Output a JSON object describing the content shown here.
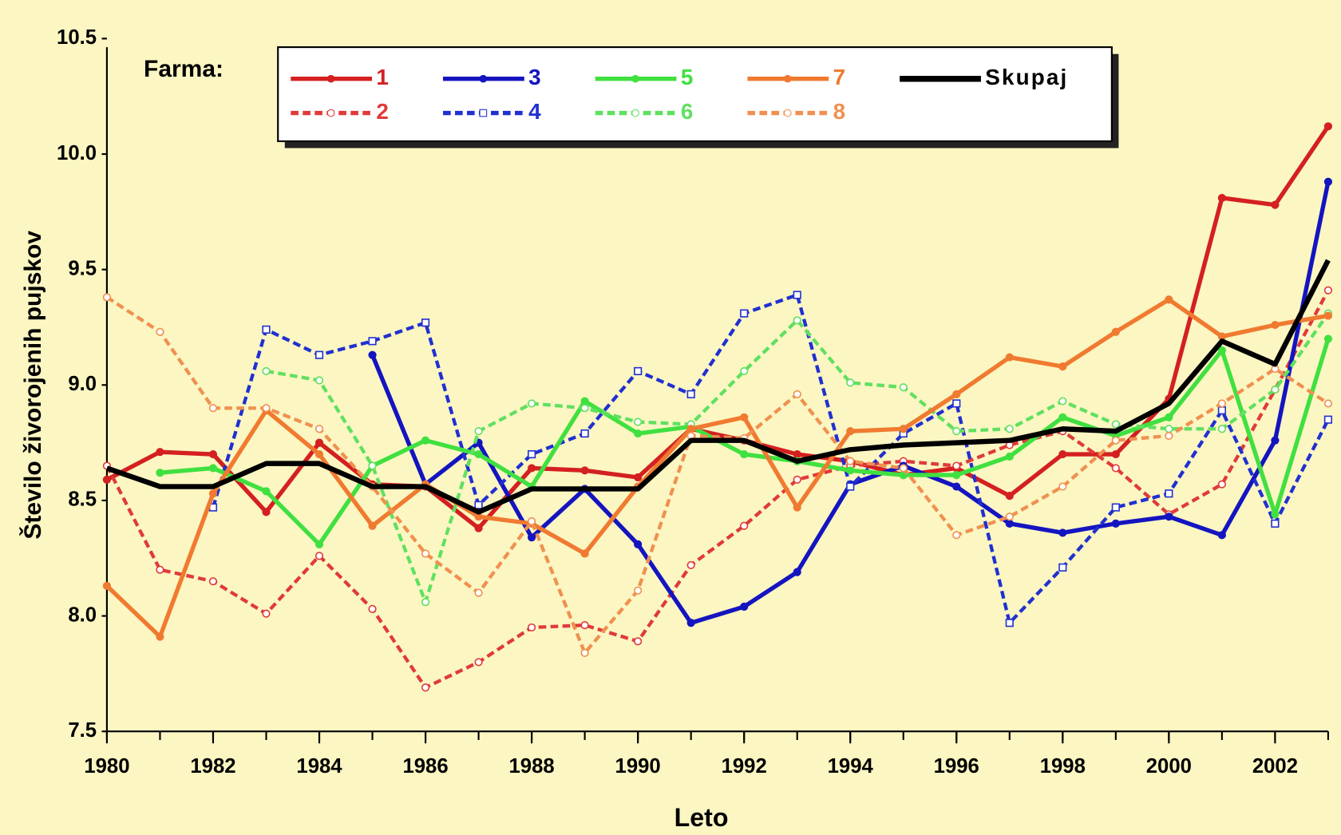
{
  "chart_data": {
    "type": "line",
    "xlabel": "Leto",
    "ylabel": "Število živorojenih pujskov",
    "legend_title": "Farma:",
    "x": [
      1980,
      1981,
      1982,
      1983,
      1984,
      1985,
      1986,
      1987,
      1988,
      1989,
      1990,
      1991,
      1992,
      1993,
      1994,
      1995,
      1996,
      1997,
      1998,
      1999,
      2000,
      2001,
      2002,
      2003
    ],
    "xlim": [
      1980,
      2003
    ],
    "xticks": [
      1980,
      1982,
      1984,
      1986,
      1988,
      1990,
      1992,
      1994,
      1996,
      1998,
      2000,
      2002
    ],
    "ylim": [
      7.5,
      10.5
    ],
    "yticks": [
      7.5,
      {
        "value": 8,
        "label": "8.0"
      },
      8.5,
      {
        "value": 9,
        "label": "9.0"
      },
      9.5,
      {
        "value": 10,
        "label": "10.0"
      },
      10.5
    ],
    "series": [
      {
        "name": "1",
        "color": "#d42020",
        "style": "solid",
        "marker": "dot",
        "values": [
          8.59,
          8.71,
          8.7,
          8.45,
          8.75,
          8.57,
          8.56,
          8.38,
          8.64,
          8.63,
          8.6,
          8.81,
          8.76,
          8.7,
          8.67,
          8.61,
          8.64,
          8.52,
          8.7,
          8.7,
          8.94,
          9.81,
          9.78,
          10.12
        ]
      },
      {
        "name": "2",
        "color": "#e03a3a",
        "style": "dashed",
        "marker": "circle",
        "values": [
          8.65,
          8.2,
          8.15,
          8.01,
          8.26,
          8.03,
          7.69,
          7.8,
          7.95,
          7.96,
          7.89,
          8.22,
          8.39,
          8.59,
          8.65,
          8.67,
          8.65,
          8.74,
          8.8,
          8.64,
          8.44,
          8.57,
          8.98,
          9.41
        ]
      },
      {
        "name": "3",
        "color": "#1414c0",
        "style": "solid",
        "marker": "dot",
        "values": [
          null,
          null,
          null,
          null,
          null,
          9.13,
          8.57,
          8.75,
          8.34,
          8.55,
          8.31,
          7.97,
          8.04,
          8.19,
          8.57,
          8.65,
          8.56,
          8.4,
          8.36,
          8.4,
          8.43,
          8.35,
          8.76,
          9.88
        ]
      },
      {
        "name": "4",
        "color": "#2030d0",
        "style": "dashed",
        "marker": "square",
        "values": [
          null,
          null,
          8.47,
          9.24,
          9.13,
          9.19,
          9.27,
          8.48,
          8.7,
          8.79,
          9.06,
          8.96,
          9.31,
          9.39,
          8.56,
          8.79,
          8.92,
          7.97,
          8.21,
          8.47,
          8.53,
          8.89,
          8.4,
          8.85
        ]
      },
      {
        "name": "5",
        "color": "#40e040",
        "style": "solid",
        "marker": "dot",
        "values": [
          null,
          8.62,
          8.64,
          8.54,
          8.31,
          8.65,
          8.76,
          8.7,
          8.56,
          8.93,
          8.79,
          8.82,
          8.7,
          8.67,
          8.63,
          8.61,
          8.61,
          8.69,
          8.86,
          8.78,
          8.86,
          9.15,
          8.44,
          9.2
        ]
      },
      {
        "name": "6",
        "color": "#60e060",
        "style": "dashed",
        "marker": "circle",
        "values": [
          null,
          null,
          null,
          9.06,
          9.02,
          8.65,
          8.06,
          8.8,
          8.92,
          8.9,
          8.84,
          8.83,
          9.06,
          9.28,
          9.01,
          8.99,
          8.8,
          8.81,
          8.93,
          8.83,
          8.81,
          8.81,
          8.98,
          9.31
        ]
      },
      {
        "name": "7",
        "color": "#f07a30",
        "style": "solid",
        "marker": "dot",
        "values": [
          8.13,
          7.91,
          8.53,
          8.89,
          8.7,
          8.39,
          8.57,
          8.43,
          8.4,
          8.27,
          8.56,
          8.81,
          8.86,
          8.47,
          8.8,
          8.81,
          8.96,
          9.12,
          9.08,
          9.23,
          9.37,
          9.21,
          9.26,
          9.3
        ]
      },
      {
        "name": "8",
        "color": "#f09050",
        "style": "dashed",
        "marker": "circle",
        "values": [
          9.38,
          9.23,
          8.9,
          8.9,
          8.81,
          8.56,
          8.27,
          8.1,
          8.41,
          7.84,
          8.11,
          8.78,
          8.77,
          8.96,
          8.67,
          8.64,
          8.35,
          8.43,
          8.56,
          8.76,
          8.78,
          8.92,
          9.07,
          8.92
        ]
      },
      {
        "name": "Skupaj",
        "color": "#000000",
        "style": "solid",
        "marker": "none",
        "values": [
          8.64,
          8.56,
          8.56,
          8.66,
          8.66,
          8.56,
          8.56,
          8.45,
          8.55,
          8.55,
          8.55,
          8.76,
          8.76,
          8.67,
          8.72,
          8.74,
          8.75,
          8.76,
          8.81,
          8.8,
          8.92,
          9.19,
          9.09,
          9.54
        ]
      }
    ]
  }
}
